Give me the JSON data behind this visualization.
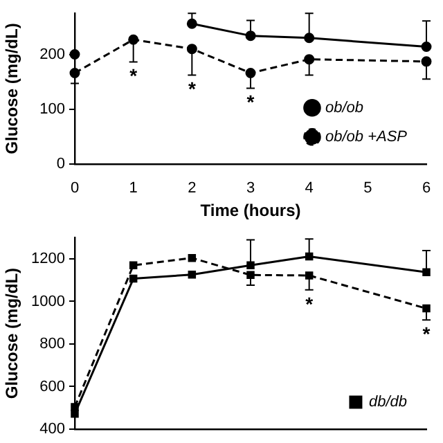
{
  "chart_data": [
    {
      "type": "line",
      "xlabel": "Time (hours)",
      "ylabel": "Glucose (mg/dL)",
      "x": [
        0,
        1,
        2,
        3,
        4,
        6
      ],
      "xlim": [
        0,
        6
      ],
      "xticks": [
        0,
        1,
        2,
        3,
        4,
        5,
        6
      ],
      "ylim": [
        0,
        275
      ],
      "yticks": [
        0,
        100,
        200
      ],
      "legend": "bottom right",
      "grid": false,
      "series": [
        {
          "name": "ob/ob",
          "color": "#000000",
          "marker": "circle",
          "line_style": "solid",
          "values": [
            200,
            null,
            256,
            234,
            230,
            214
          ],
          "errors": [
            null,
            null,
            [
              256,
              275
            ],
            [
              234,
              262
            ],
            [
              230,
              275
            ],
            [
              214,
              261
            ]
          ]
        },
        {
          "name": "ob/ob +ASP",
          "color": "#000000",
          "marker": "circle",
          "line_style": "dashed",
          "values": [
            166,
            227,
            210,
            166,
            191,
            187
          ],
          "errors": [
            [
              147,
              166
            ],
            [
              186,
              227
            ],
            [
              162,
              210
            ],
            [
              138,
              166
            ],
            [
              162,
              191
            ],
            [
              155,
              187
            ]
          ]
        }
      ],
      "annotations": [
        {
          "text": "*",
          "x": 1,
          "y": 227
        },
        {
          "text": "*",
          "x": 2,
          "y": 210
        },
        {
          "text": "*",
          "x": 3,
          "y": 166
        }
      ]
    },
    {
      "type": "line",
      "ylabel": "Glucose (mg/dL)",
      "x": [
        0,
        1,
        2,
        3,
        4,
        6
      ],
      "xlim": [
        0,
        6
      ],
      "ylim": [
        400,
        1300
      ],
      "yticks": [
        400,
        600,
        800,
        1000,
        1200
      ],
      "legend": "bottom right",
      "grid": false,
      "tick_labels": "y",
      "series": [
        {
          "name": "db/db",
          "color": "#000000",
          "marker": "square",
          "line_style": "solid",
          "values": [
            472,
            1107,
            1126,
            1170,
            1211,
            1137
          ],
          "errors": [
            null,
            null,
            null,
            [
              1170,
              1289
            ],
            [
              1211,
              1293
            ],
            [
              1137,
              1239
            ]
          ]
        },
        {
          "color": "#000000",
          "marker": "square",
          "line_style": "dashed",
          "values": [
            504,
            1170,
            1204,
            1124,
            1122,
            967
          ],
          "errors": [
            null,
            null,
            null,
            [
              1076,
              1124
            ],
            [
              1054,
              1122
            ],
            [
              913,
              967
            ]
          ]
        }
      ],
      "annotations": [
        {
          "text": "*",
          "x": 4,
          "y": 1122
        },
        {
          "text": "*",
          "x": 6,
          "y": 967
        }
      ]
    }
  ]
}
